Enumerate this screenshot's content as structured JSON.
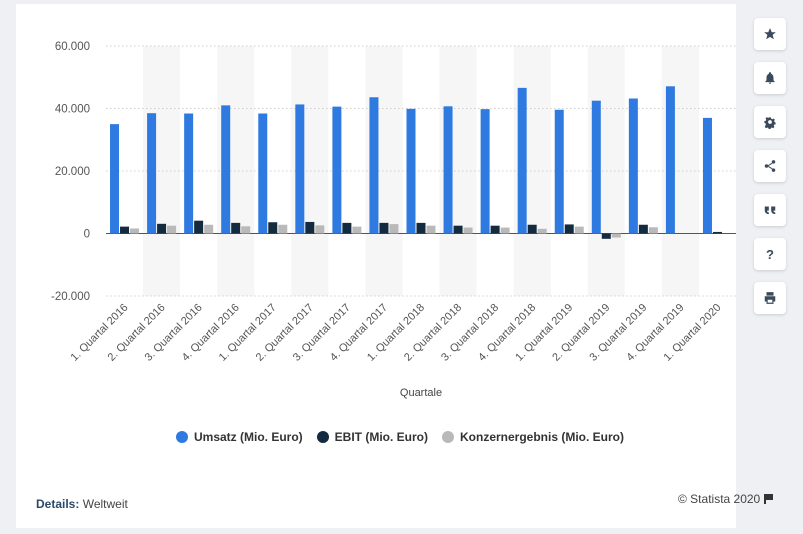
{
  "chart_data": {
    "type": "bar",
    "title": "",
    "xlabel": "Quartale",
    "ylabel": "",
    "ylim": [
      -20000,
      60000
    ],
    "yticks": [
      -20000,
      0,
      20000,
      40000,
      60000
    ],
    "ytick_labels": [
      "-20.000",
      "0",
      "20.000",
      "40.000",
      "60.000"
    ],
    "grid": true,
    "legend": "bottom-center",
    "categories": [
      "1. Quartal 2016",
      "2. Quartal 2016",
      "3. Quartal 2016",
      "4. Quartal 2016",
      "1. Quartal 2017",
      "2. Quartal 2017",
      "3. Quartal 2017",
      "4. Quartal 2017",
      "1. Quartal 2018",
      "2. Quartal 2018",
      "3. Quartal 2018",
      "4. Quartal 2018",
      "1. Quartal 2019",
      "2. Quartal 2019",
      "3. Quartal 2019",
      "4. Quartal 2019",
      "1. Quartal 2020"
    ],
    "series": [
      {
        "name": "Umsatz (Mio. Euro)",
        "color": "#2f7ae0",
        "values": [
          35000,
          38500,
          38400,
          41000,
          38400,
          41300,
          40600,
          43600,
          39900,
          40700,
          39800,
          46600,
          39600,
          42500,
          43200,
          47100,
          37000
        ]
      },
      {
        "name": "EBIT (Mio. Euro)",
        "color": "#142a3e",
        "values": [
          2200,
          3100,
          4100,
          3400,
          3600,
          3700,
          3400,
          3400,
          3400,
          2500,
          2500,
          2800,
          2900,
          -1700,
          2800,
          0,
          500
        ]
      },
      {
        "name": "Konzernergebnis (Mio. Euro)",
        "color": "#b9b9b9",
        "values": [
          1600,
          2500,
          2800,
          2300,
          2800,
          2600,
          2200,
          3000,
          2500,
          1900,
          1900,
          1500,
          2200,
          -1300,
          2000,
          0,
          0
        ]
      }
    ]
  },
  "footer": {
    "details_label": "Details:",
    "details_value": "Weltweit",
    "credit": "© Statista 2020"
  },
  "sidebar_icons": [
    "star-icon",
    "bell-icon",
    "gear-icon",
    "share-icon",
    "quote-icon",
    "help-icon",
    "print-icon"
  ],
  "sidebar_help_glyph": "?"
}
